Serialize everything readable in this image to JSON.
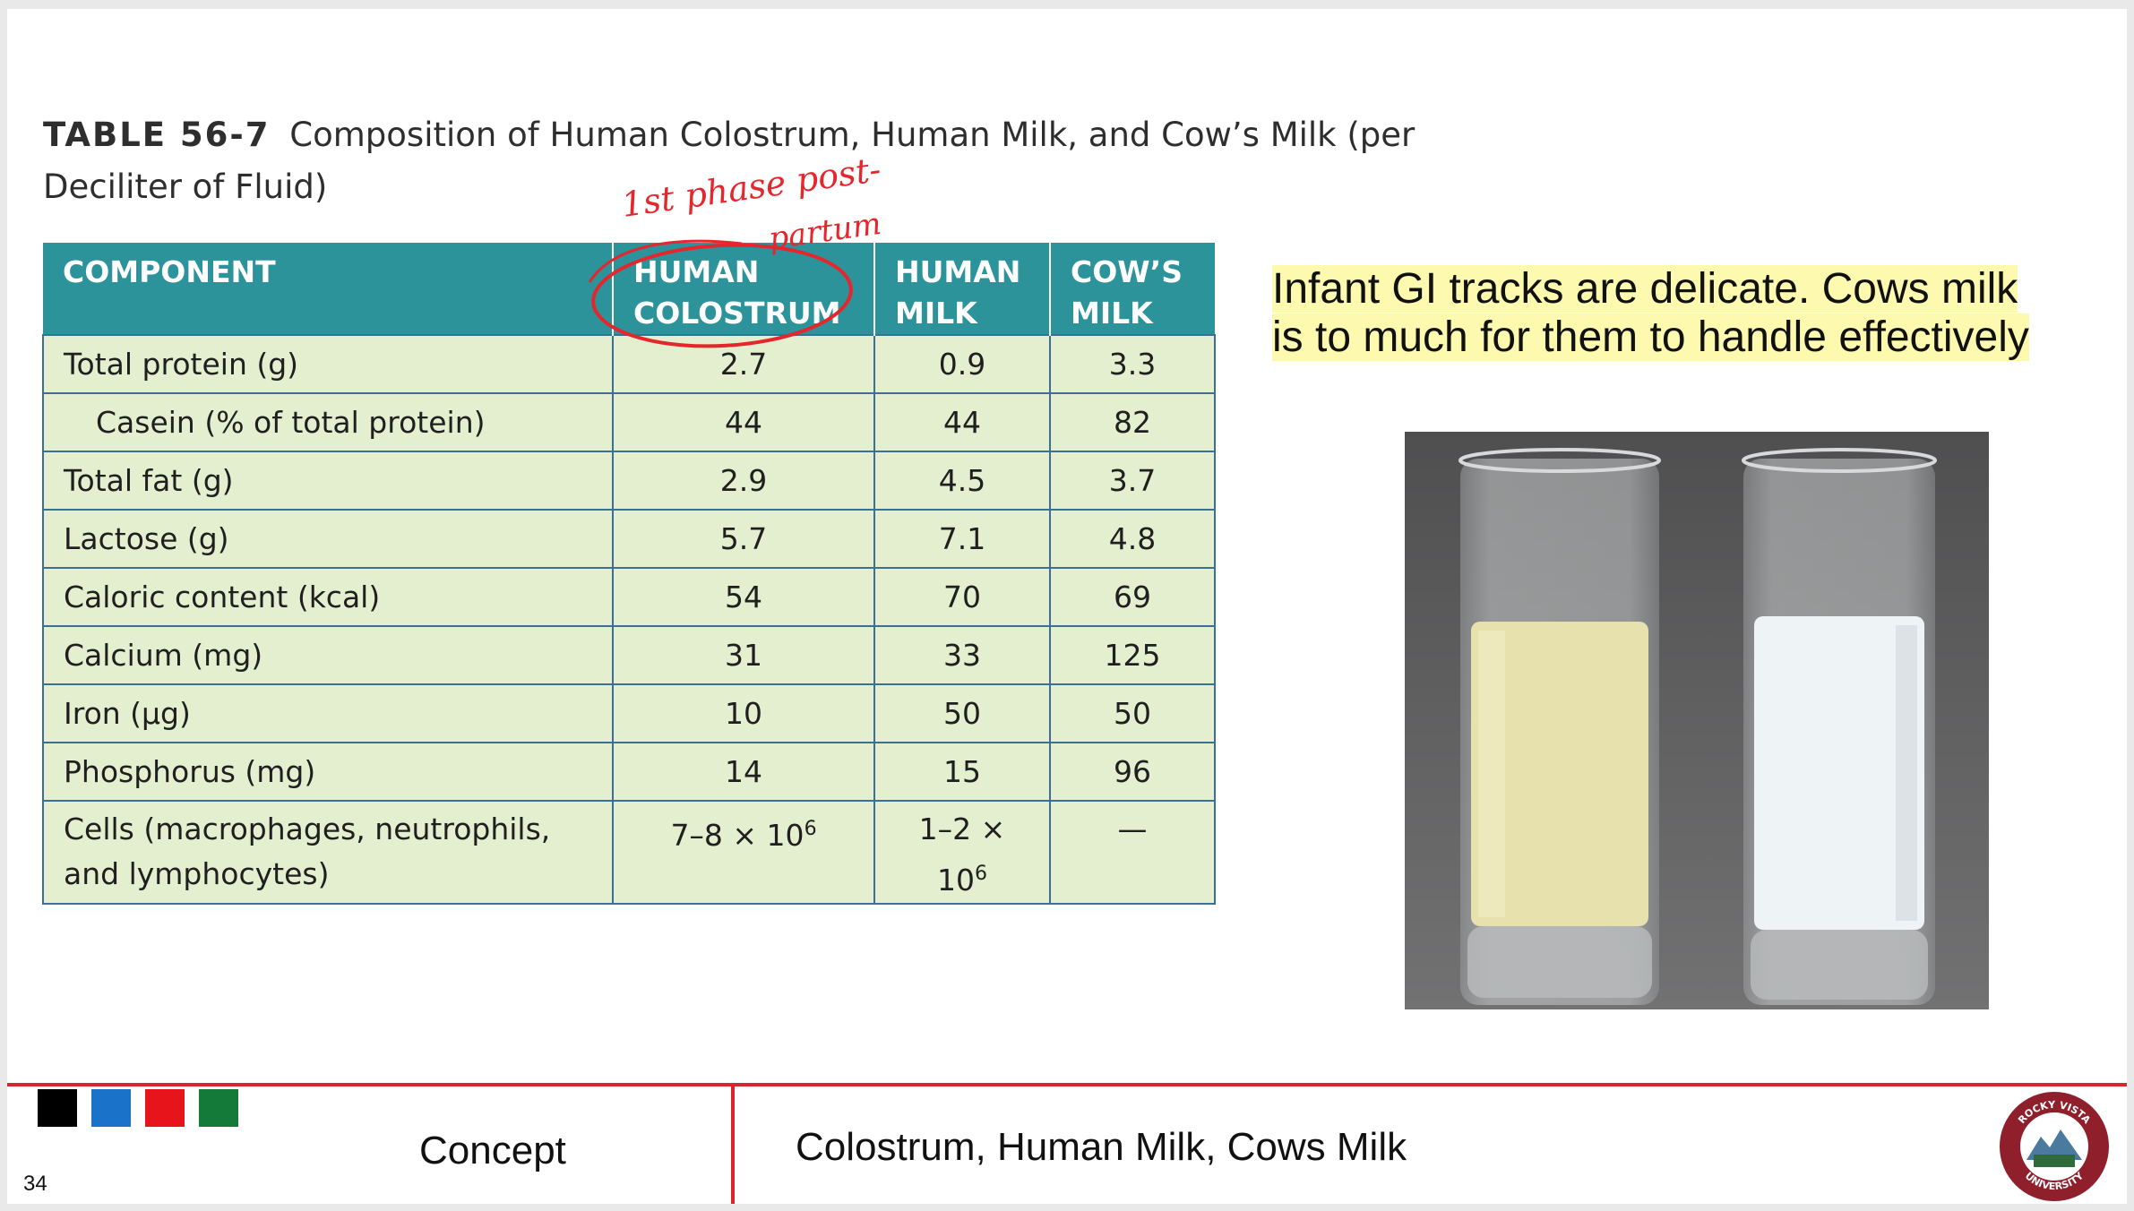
{
  "caption": {
    "label": "TABLE 56-7",
    "text": "Composition of Human Colostrum, Human Milk, and Cow’s Milk (per Deciliter of Fluid)"
  },
  "table": {
    "headers": [
      {
        "line1": "COMPONENT",
        "line2": ""
      },
      {
        "line1": "HUMAN",
        "line2": "COLOSTRUM"
      },
      {
        "line1": "HUMAN",
        "line2": "MILK"
      },
      {
        "line1": "COW’S",
        "line2": "MILK"
      }
    ],
    "rows": [
      {
        "component": "Total protein (g)",
        "colostrum": "2.7",
        "human_milk": "0.9",
        "cows_milk": "3.3"
      },
      {
        "component": "Casein (% of total protein)",
        "colostrum": "44",
        "human_milk": "44",
        "cows_milk": "82"
      },
      {
        "component": "Total fat (g)",
        "colostrum": "2.9",
        "human_milk": "4.5",
        "cows_milk": "3.7"
      },
      {
        "component": "Lactose (g)",
        "colostrum": "5.7",
        "human_milk": "7.1",
        "cows_milk": "4.8"
      },
      {
        "component": "Caloric content (kcal)",
        "colostrum": "54",
        "human_milk": "70",
        "cows_milk": "69"
      },
      {
        "component": "Calcium (mg)",
        "colostrum": "31",
        "human_milk": "33",
        "cows_milk": "125"
      },
      {
        "component": "Iron (µg)",
        "colostrum": "10",
        "human_milk": "50",
        "cows_milk": "50"
      },
      {
        "component": "Phosphorus (mg)",
        "colostrum": "14",
        "human_milk": "15",
        "cows_milk": "96"
      },
      {
        "component": "Cells (macrophages, neutrophils, and lymphocytes)",
        "colostrum_base": "7–8 × 10",
        "colostrum_exp": "6",
        "human_milk_base": "1–2 × 10",
        "human_milk_exp": "6",
        "cows_milk": "—"
      }
    ]
  },
  "annotation": {
    "line1": "1st phase  post-",
    "line2": "partum",
    "color": "#e5262c"
  },
  "note": {
    "line1": "Infant GI tracks are delicate. Cows milk",
    "line2": "is to much for them to handle effectively",
    "highlight": "#fdfab0"
  },
  "photo": {
    "left_glass_liquid": "#ece7b3",
    "right_glass_liquid": "#f2f6f8",
    "background": "#5b5b5c"
  },
  "footer": {
    "slide_number": "34",
    "concept_label": "Concept",
    "title": "Colostrum, Human Milk, Cows Milk",
    "swatches": [
      "#000000",
      "#1a73c8",
      "#e8141b",
      "#137a3a"
    ],
    "accent": "#d9252b",
    "logo_text_top": "ROCKY VISTA",
    "logo_text_bottom": "UNIVERSITY"
  }
}
